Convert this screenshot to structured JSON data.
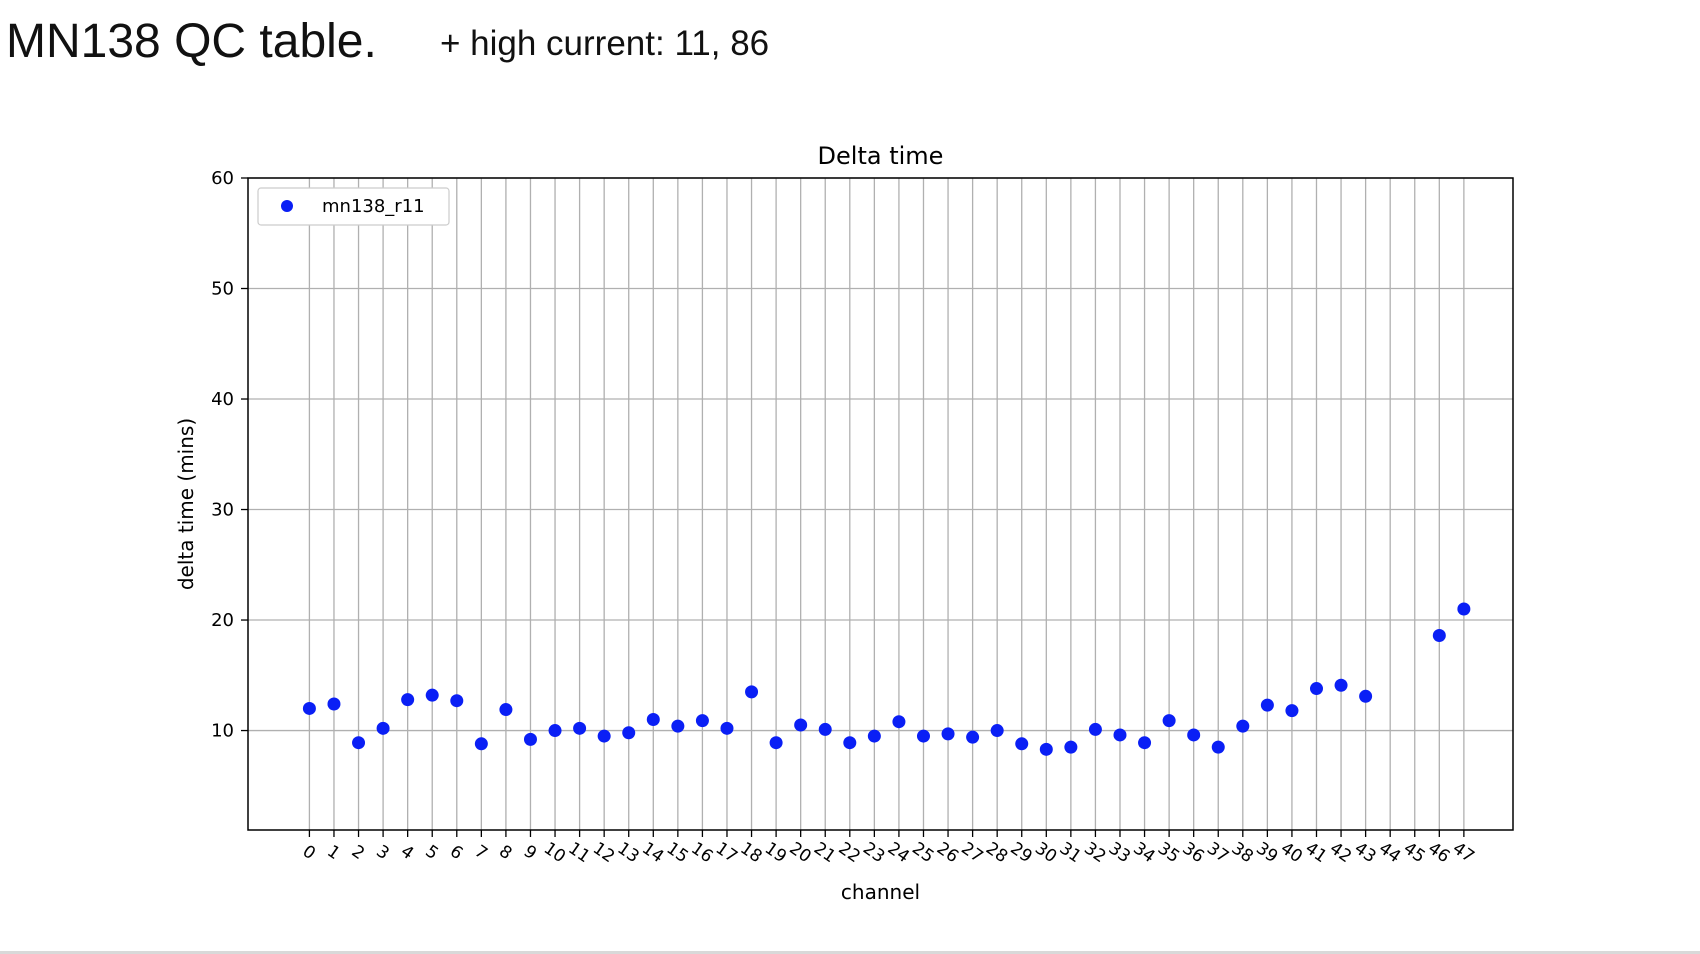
{
  "slide": {
    "title": "MN138 QC table.",
    "subtitle": "+ high current: 11, 86"
  },
  "chart_data": {
    "type": "scatter",
    "title": "Delta time",
    "xlabel": "channel",
    "ylabel": "delta time (mins)",
    "xlim": [
      -2.5,
      49.0
    ],
    "ylim": [
      1,
      60
    ],
    "yticks": [
      10,
      20,
      30,
      40,
      50,
      60
    ],
    "xticks": [
      0,
      1,
      2,
      3,
      4,
      5,
      6,
      7,
      8,
      9,
      10,
      11,
      12,
      13,
      14,
      15,
      16,
      17,
      18,
      19,
      20,
      21,
      22,
      23,
      24,
      25,
      26,
      27,
      28,
      29,
      30,
      31,
      32,
      33,
      34,
      35,
      36,
      37,
      38,
      39,
      40,
      41,
      42,
      43,
      44,
      45,
      46,
      47
    ],
    "grid": true,
    "legend_position": "upper-left",
    "series": [
      {
        "name": "mn138_r11",
        "color": "#0a1ff5",
        "x": [
          0,
          1,
          2,
          3,
          4,
          5,
          6,
          7,
          8,
          9,
          10,
          11,
          12,
          13,
          14,
          15,
          16,
          17,
          18,
          19,
          20,
          21,
          22,
          23,
          24,
          25,
          26,
          27,
          28,
          29,
          30,
          31,
          32,
          33,
          34,
          35,
          36,
          37,
          38,
          39,
          40,
          41,
          42,
          43,
          46,
          47
        ],
        "y": [
          12.0,
          12.4,
          8.9,
          10.2,
          12.8,
          13.2,
          12.7,
          8.8,
          11.9,
          9.2,
          10.0,
          10.2,
          9.5,
          9.8,
          11.0,
          10.4,
          10.9,
          10.2,
          13.5,
          8.9,
          10.5,
          10.1,
          8.9,
          9.5,
          10.8,
          9.5,
          9.7,
          9.4,
          10.0,
          8.8,
          8.3,
          8.5,
          10.1,
          9.6,
          8.9,
          10.9,
          9.6,
          8.5,
          10.4,
          12.3,
          11.8,
          13.8,
          14.1,
          13.1,
          18.6,
          21.0
        ]
      }
    ]
  }
}
